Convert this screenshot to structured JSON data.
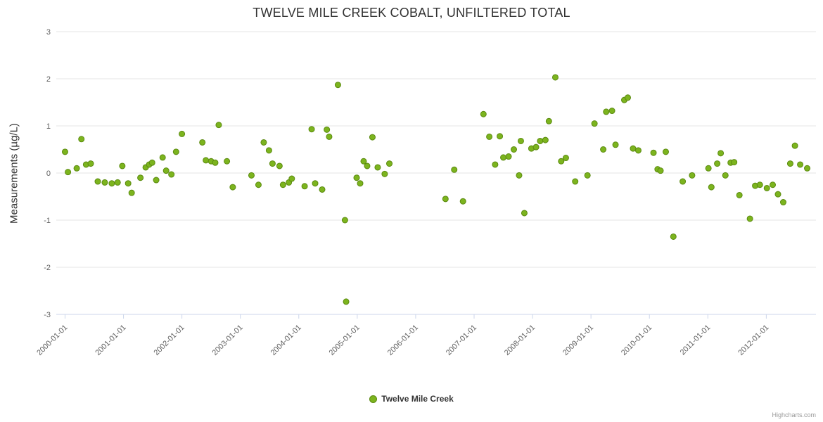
{
  "title": "TWELVE MILE CREEK COBALT, UNFILTERED TOTAL",
  "legend": {
    "label": "Twelve Mile Creek"
  },
  "credits": "Highcharts.com",
  "chart_data": {
    "type": "scatter",
    "title": "TWELVE MILE CREEK COBALT, UNFILTERED TOTAL",
    "xlabel": "",
    "ylabel": "Measurements (µg/L)",
    "ylim": [
      -3,
      3
    ],
    "yticks": [
      -3,
      -2,
      -1,
      0,
      1,
      2,
      3
    ],
    "xlim": [
      1999.85,
      2012.85
    ],
    "xticks": [
      2000,
      2001,
      2002,
      2003,
      2004,
      2005,
      2006,
      2007,
      2008,
      2009,
      2010,
      2011,
      2012
    ],
    "xtick_labels": [
      "2000-01-01",
      "2001-01-01",
      "2002-01-01",
      "2003-01-01",
      "2004-01-01",
      "2005-01-01",
      "2006-01-01",
      "2007-01-01",
      "2008-01-01",
      "2009-01-01",
      "2010-01-01",
      "2011-01-01",
      "2012-01-01"
    ],
    "grid": "horizontal",
    "legend_position": "bottom-center",
    "series": [
      {
        "name": "Twelve Mile Creek",
        "color": "#7cb41e",
        "marker_stroke": "#5b8a10",
        "points": [
          [
            2000.0,
            0.45
          ],
          [
            2000.05,
            0.02
          ],
          [
            2000.2,
            0.1
          ],
          [
            2000.28,
            0.72
          ],
          [
            2000.36,
            0.18
          ],
          [
            2000.44,
            0.2
          ],
          [
            2000.56,
            -0.18
          ],
          [
            2000.68,
            -0.2
          ],
          [
            2000.8,
            -0.22
          ],
          [
            2000.9,
            -0.2
          ],
          [
            2000.98,
            0.15
          ],
          [
            2001.08,
            -0.22
          ],
          [
            2001.14,
            -0.42
          ],
          [
            2001.29,
            -0.1
          ],
          [
            2001.38,
            0.12
          ],
          [
            2001.44,
            0.18
          ],
          [
            2001.49,
            0.22
          ],
          [
            2001.56,
            -0.15
          ],
          [
            2001.67,
            0.33
          ],
          [
            2001.73,
            0.05
          ],
          [
            2001.82,
            -0.03
          ],
          [
            2001.9,
            0.45
          ],
          [
            2002.0,
            0.83
          ],
          [
            2002.35,
            0.65
          ],
          [
            2002.41,
            0.27
          ],
          [
            2002.5,
            0.25
          ],
          [
            2002.57,
            0.22
          ],
          [
            2002.63,
            1.02
          ],
          [
            2002.77,
            0.25
          ],
          [
            2002.87,
            -0.3
          ],
          [
            2003.19,
            -0.05
          ],
          [
            2003.31,
            -0.25
          ],
          [
            2003.4,
            0.65
          ],
          [
            2003.49,
            0.48
          ],
          [
            2003.55,
            0.2
          ],
          [
            2003.67,
            0.15
          ],
          [
            2003.73,
            -0.25
          ],
          [
            2003.83,
            -0.2
          ],
          [
            2003.88,
            -0.12
          ],
          [
            2004.1,
            -0.28
          ],
          [
            2004.22,
            0.93
          ],
          [
            2004.28,
            -0.22
          ],
          [
            2004.4,
            -0.35
          ],
          [
            2004.48,
            0.92
          ],
          [
            2004.52,
            0.77
          ],
          [
            2004.67,
            1.87
          ],
          [
            2004.79,
            -1.0
          ],
          [
            2004.81,
            -2.73
          ],
          [
            2004.99,
            -0.1
          ],
          [
            2005.05,
            -0.22
          ],
          [
            2005.11,
            0.25
          ],
          [
            2005.17,
            0.15
          ],
          [
            2005.26,
            0.76
          ],
          [
            2005.35,
            0.12
          ],
          [
            2005.47,
            -0.02
          ],
          [
            2005.55,
            0.2
          ],
          [
            2006.51,
            -0.55
          ],
          [
            2006.66,
            0.07
          ],
          [
            2006.81,
            -0.6
          ],
          [
            2007.16,
            1.25
          ],
          [
            2007.26,
            0.77
          ],
          [
            2007.36,
            0.18
          ],
          [
            2007.44,
            0.78
          ],
          [
            2007.5,
            0.33
          ],
          [
            2007.59,
            0.35
          ],
          [
            2007.68,
            0.5
          ],
          [
            2007.77,
            -0.05
          ],
          [
            2007.8,
            0.68
          ],
          [
            2007.86,
            -0.85
          ],
          [
            2007.98,
            0.52
          ],
          [
            2008.06,
            0.55
          ],
          [
            2008.13,
            0.68
          ],
          [
            2008.22,
            0.7
          ],
          [
            2008.28,
            1.1
          ],
          [
            2008.39,
            2.03
          ],
          [
            2008.49,
            0.25
          ],
          [
            2008.57,
            0.32
          ],
          [
            2008.73,
            -0.18
          ],
          [
            2008.94,
            -0.05
          ],
          [
            2009.06,
            1.05
          ],
          [
            2009.21,
            0.5
          ],
          [
            2009.26,
            1.3
          ],
          [
            2009.36,
            1.32
          ],
          [
            2009.42,
            0.6
          ],
          [
            2009.57,
            1.55
          ],
          [
            2009.63,
            1.6
          ],
          [
            2009.72,
            0.52
          ],
          [
            2009.81,
            0.48
          ],
          [
            2010.07,
            0.43
          ],
          [
            2010.14,
            0.08
          ],
          [
            2010.19,
            0.05
          ],
          [
            2010.28,
            0.45
          ],
          [
            2010.41,
            -1.35
          ],
          [
            2010.57,
            -0.18
          ],
          [
            2010.73,
            -0.05
          ],
          [
            2011.01,
            0.1
          ],
          [
            2011.06,
            -0.3
          ],
          [
            2011.16,
            0.2
          ],
          [
            2011.22,
            0.42
          ],
          [
            2011.3,
            -0.05
          ],
          [
            2011.39,
            0.22
          ],
          [
            2011.45,
            0.23
          ],
          [
            2011.54,
            -0.47
          ],
          [
            2011.72,
            -0.97
          ],
          [
            2011.81,
            -0.27
          ],
          [
            2011.89,
            -0.25
          ],
          [
            2012.01,
            -0.32
          ],
          [
            2012.11,
            -0.25
          ],
          [
            2012.2,
            -0.45
          ],
          [
            2012.29,
            -0.62
          ],
          [
            2012.41,
            0.2
          ],
          [
            2012.49,
            0.58
          ],
          [
            2012.58,
            0.18
          ],
          [
            2012.7,
            0.1
          ]
        ]
      }
    ],
    "colors": {
      "grid": "#e6e6e6",
      "axis_line": "#ccd6eb",
      "tick_label": "#606060",
      "title": "#333333"
    }
  }
}
